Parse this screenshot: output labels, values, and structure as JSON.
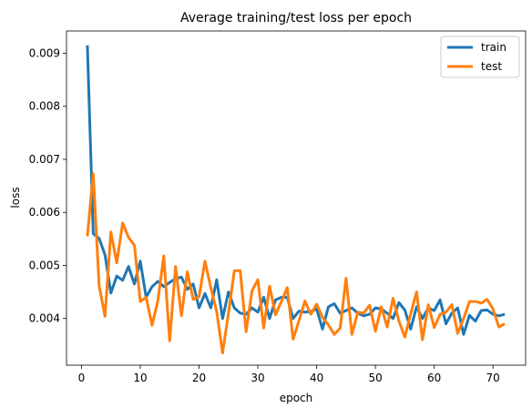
{
  "chart_data": {
    "type": "line",
    "title": "Average training/test loss per epoch",
    "xlabel": "epoch",
    "ylabel": "loss",
    "xlim": [
      -2.55,
      75.55
    ],
    "ylim": [
      0.00312,
      0.00942
    ],
    "xticks": [
      0,
      10,
      20,
      30,
      40,
      50,
      60,
      70
    ],
    "xtick_labels": [
      "0",
      "10",
      "20",
      "30",
      "40",
      "50",
      "60",
      "70"
    ],
    "yticks": [
      0.004,
      0.005,
      0.006,
      0.007,
      0.008,
      0.009
    ],
    "ytick_labels": [
      "0.004",
      "0.005",
      "0.006",
      "0.007",
      "0.008",
      "0.009"
    ],
    "grid": false,
    "legend_position": "top-right",
    "x": [
      1,
      2,
      3,
      4,
      5,
      6,
      7,
      8,
      9,
      10,
      11,
      12,
      13,
      14,
      15,
      16,
      17,
      18,
      19,
      20,
      21,
      22,
      23,
      24,
      25,
      26,
      27,
      28,
      29,
      30,
      31,
      32,
      33,
      34,
      35,
      36,
      37,
      38,
      39,
      40,
      41,
      42,
      43,
      44,
      45,
      46,
      47,
      48,
      49,
      50,
      51,
      52,
      53,
      54,
      55,
      56,
      57,
      58,
      59,
      60,
      61,
      62,
      63,
      64,
      65,
      66,
      67,
      68,
      69,
      70,
      71,
      72
    ],
    "series": [
      {
        "name": "train",
        "color": "#1f77b4",
        "values": [
          0.00915,
          0.0056,
          0.00551,
          0.0052,
          0.00448,
          0.0048,
          0.00472,
          0.00498,
          0.00465,
          0.00508,
          0.0044,
          0.0046,
          0.0047,
          0.0046,
          0.00468,
          0.00475,
          0.00478,
          0.00455,
          0.00465,
          0.0042,
          0.00447,
          0.0042,
          0.00473,
          0.004,
          0.0045,
          0.0042,
          0.0041,
          0.00408,
          0.0042,
          0.00412,
          0.0044,
          0.004,
          0.00435,
          0.0044,
          0.0044,
          0.004,
          0.00414,
          0.00412,
          0.00413,
          0.00418,
          0.0038,
          0.00422,
          0.00428,
          0.0041,
          0.00415,
          0.0042,
          0.0041,
          0.00405,
          0.00408,
          0.0042,
          0.00418,
          0.0041,
          0.004,
          0.0043,
          0.00416,
          0.0038,
          0.00422,
          0.004,
          0.0042,
          0.00415,
          0.00435,
          0.0039,
          0.0041,
          0.0042,
          0.0037,
          0.00406,
          0.00395,
          0.00415,
          0.00416,
          0.00408,
          0.00405,
          0.00408
        ]
      },
      {
        "name": "test",
        "color": "#ff7f0e",
        "values": [
          0.00555,
          0.00673,
          0.00462,
          0.00404,
          0.00563,
          0.00505,
          0.0058,
          0.00553,
          0.00538,
          0.00432,
          0.0044,
          0.00387,
          0.00434,
          0.00518,
          0.00358,
          0.00498,
          0.00405,
          0.00488,
          0.00436,
          0.00441,
          0.00508,
          0.00458,
          0.00413,
          0.00335,
          0.0041,
          0.0049,
          0.0049,
          0.00375,
          0.00452,
          0.00473,
          0.00382,
          0.00461,
          0.00407,
          0.00432,
          0.00458,
          0.00361,
          0.00396,
          0.00433,
          0.00408,
          0.00427,
          0.00402,
          0.00388,
          0.0037,
          0.00382,
          0.00476,
          0.0037,
          0.00412,
          0.0041,
          0.00425,
          0.00376,
          0.00422,
          0.00384,
          0.00438,
          0.00395,
          0.00365,
          0.00409,
          0.0045,
          0.0036,
          0.00426,
          0.00383,
          0.00408,
          0.00412,
          0.00426,
          0.00372,
          0.004,
          0.00432,
          0.00432,
          0.00429,
          0.00436,
          0.00418,
          0.00384,
          0.0039
        ]
      }
    ]
  }
}
